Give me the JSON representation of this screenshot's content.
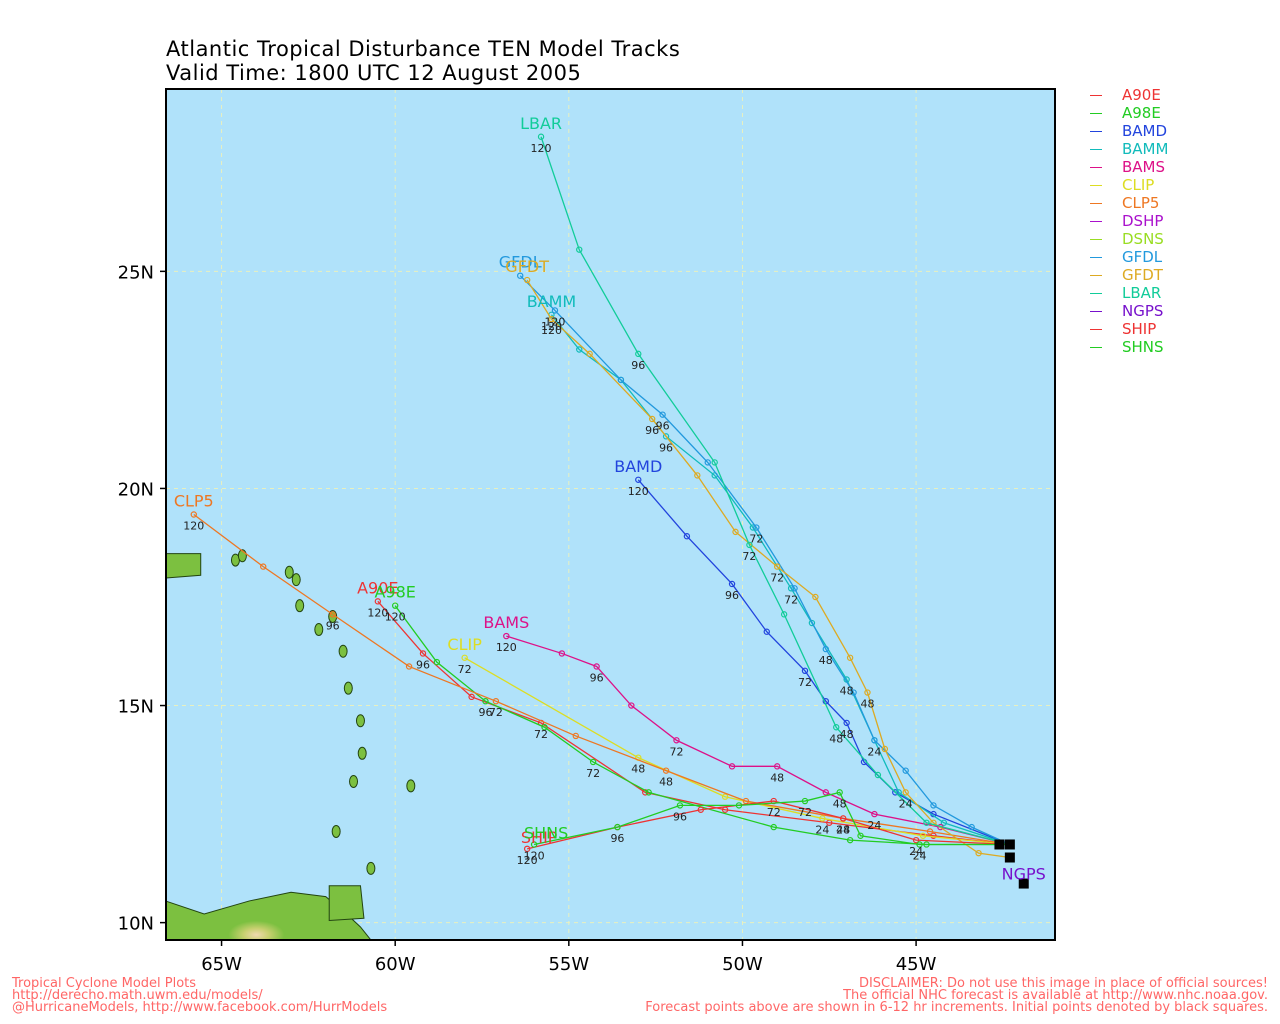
{
  "title": {
    "line1": "Atlantic Tropical Disturbance TEN Model Tracks",
    "line2": "Valid Time: 1800 UTC 12 August 2005"
  },
  "map": {
    "ocean_color": "#b0e2fa",
    "grid_color": "#e8f0c0",
    "lon_range": [
      -66.6,
      -41.0
    ],
    "lat_range": [
      9.6,
      29.2
    ],
    "lon_ticks": [
      {
        "v": -65,
        "label": "65W"
      },
      {
        "v": -60,
        "label": "60W"
      },
      {
        "v": -55,
        "label": "55W"
      },
      {
        "v": -50,
        "label": "50W"
      },
      {
        "v": -45,
        "label": "45W"
      }
    ],
    "lat_ticks": [
      {
        "v": 10,
        "label": "10N"
      },
      {
        "v": 15,
        "label": "15N"
      },
      {
        "v": 20,
        "label": "20N"
      },
      {
        "v": 25,
        "label": "25N"
      }
    ],
    "initial_point": {
      "lon": -42.3,
      "lat": 11.8
    }
  },
  "legend": [
    {
      "name": "A90E",
      "color": "#ee3333"
    },
    {
      "name": "A98E",
      "color": "#22cc22"
    },
    {
      "name": "BAMD",
      "color": "#2244dd"
    },
    {
      "name": "BAMM",
      "color": "#11bbbb"
    },
    {
      "name": "BAMS",
      "color": "#dd1188"
    },
    {
      "name": "CLIP",
      "color": "#dddd22"
    },
    {
      "name": "CLP5",
      "color": "#ee7722"
    },
    {
      "name": "DSHP",
      "color": "#aa11cc"
    },
    {
      "name": "DSNS",
      "color": "#99dd22"
    },
    {
      "name": "GFDL",
      "color": "#2299dd"
    },
    {
      "name": "GFDT",
      "color": "#ddaa22"
    },
    {
      "name": "LBAR",
      "color": "#11cc99"
    },
    {
      "name": "NGPS",
      "color": "#7711cc"
    },
    {
      "name": "SHIP",
      "color": "#ee3333"
    },
    {
      "name": "SHNS",
      "color": "#22cc22"
    }
  ],
  "tracks": [
    {
      "name": "A90E",
      "color": "#ee3333",
      "label_pos": "above",
      "points": [
        [
          -42.3,
          11.8
        ],
        [
          -44.5,
          12.0
        ],
        [
          -47.5,
          12.3
        ],
        [
          -50.5,
          12.6
        ],
        [
          -52.8,
          13.0
        ],
        [
          -55.8,
          14.6
        ],
        [
          -57.8,
          15.2
        ],
        [
          -59.2,
          16.2
        ],
        [
          -60.5,
          17.4
        ]
      ],
      "tau_labels": [
        {
          "i": 5,
          "t": "72"
        },
        {
          "i": 7,
          "t": "96"
        },
        {
          "i": 8,
          "t": "120"
        }
      ]
    },
    {
      "name": "A98E",
      "color": "#22cc22",
      "label_pos": "above",
      "points": [
        [
          -42.3,
          11.8
        ],
        [
          -44.7,
          11.8
        ],
        [
          -46.9,
          11.9
        ],
        [
          -49.1,
          12.2
        ],
        [
          -52.7,
          13.0
        ],
        [
          -54.3,
          13.7
        ],
        [
          -55.7,
          14.5
        ],
        [
          -57.4,
          15.1
        ],
        [
          -58.8,
          16.0
        ],
        [
          -60.0,
          17.3
        ]
      ],
      "tau_labels": [
        {
          "i": 5,
          "t": "72"
        },
        {
          "i": 7,
          "t": "96"
        },
        {
          "i": 9,
          "t": "120"
        }
      ]
    },
    {
      "name": "BAMD",
      "color": "#2244dd",
      "label_pos": "above",
      "points": [
        [
          -42.3,
          11.8
        ],
        [
          -44.5,
          12.5
        ],
        [
          -45.6,
          13.0
        ],
        [
          -46.5,
          13.7
        ],
        [
          -47.0,
          14.6
        ],
        [
          -47.6,
          15.1
        ],
        [
          -48.2,
          15.8
        ],
        [
          -49.3,
          16.7
        ],
        [
          -50.3,
          17.8
        ],
        [
          -51.6,
          18.9
        ],
        [
          -53.0,
          20.2
        ]
      ],
      "tau_labels": [
        {
          "i": 4,
          "t": "48"
        },
        {
          "i": 6,
          "t": "72"
        },
        {
          "i": 8,
          "t": "96"
        },
        {
          "i": 10,
          "t": "120"
        }
      ]
    },
    {
      "name": "BAMM",
      "color": "#11bbbb",
      "label_pos": "above",
      "points": [
        [
          -42.3,
          11.8
        ],
        [
          -44.2,
          12.3
        ],
        [
          -45.5,
          13.0
        ],
        [
          -46.2,
          14.2
        ],
        [
          -47.0,
          15.6
        ],
        [
          -48.0,
          16.9
        ],
        [
          -48.6,
          17.7
        ],
        [
          -49.7,
          19.1
        ],
        [
          -50.8,
          20.3
        ],
        [
          -52.2,
          21.2
        ],
        [
          -53.5,
          22.5
        ],
        [
          -54.7,
          23.2
        ],
        [
          -55.5,
          24.0
        ]
      ],
      "tau_labels": [
        {
          "i": 4,
          "t": "48"
        },
        {
          "i": 6,
          "t": "72"
        },
        {
          "i": 9,
          "t": "96"
        },
        {
          "i": 12,
          "t": "120"
        }
      ]
    },
    {
      "name": "BAMS",
      "color": "#dd1188",
      "label_pos": "above",
      "points": [
        [
          -42.3,
          11.8
        ],
        [
          -44.3,
          12.2
        ],
        [
          -46.2,
          12.5
        ],
        [
          -47.6,
          13.0
        ],
        [
          -49.0,
          13.6
        ],
        [
          -50.3,
          13.6
        ],
        [
          -51.9,
          14.2
        ],
        [
          -53.2,
          15.0
        ],
        [
          -54.2,
          15.9
        ],
        [
          -55.2,
          16.2
        ],
        [
          -56.8,
          16.6
        ]
      ],
      "tau_labels": [
        {
          "i": 2,
          "t": "24"
        },
        {
          "i": 4,
          "t": "48"
        },
        {
          "i": 6,
          "t": "72"
        },
        {
          "i": 8,
          "t": "96"
        },
        {
          "i": 10,
          "t": "120"
        }
      ]
    },
    {
      "name": "CLIP",
      "color": "#dddd22",
      "label_pos": "above",
      "points": [
        [
          -42.3,
          11.8
        ],
        [
          -44.8,
          12.0
        ],
        [
          -47.7,
          12.4
        ],
        [
          -50.5,
          12.9
        ],
        [
          -53.0,
          13.8
        ],
        [
          -58.0,
          16.1
        ]
      ],
      "tau_labels": [
        {
          "i": 2,
          "t": "24"
        },
        {
          "i": 4,
          "t": "48"
        },
        {
          "i": 5,
          "t": "72"
        }
      ]
    },
    {
      "name": "CLP5",
      "color": "#ee7722",
      "label_pos": "above",
      "points": [
        [
          -42.3,
          11.8
        ],
        [
          -44.6,
          12.1
        ],
        [
          -47.1,
          12.4
        ],
        [
          -49.9,
          12.8
        ],
        [
          -52.2,
          13.5
        ],
        [
          -54.8,
          14.3
        ],
        [
          -57.1,
          15.1
        ],
        [
          -59.6,
          15.9
        ],
        [
          -61.8,
          17.1
        ],
        [
          -63.8,
          18.2
        ],
        [
          -65.8,
          19.4
        ]
      ],
      "tau_labels": [
        {
          "i": 2,
          "t": "24"
        },
        {
          "i": 4,
          "t": "48"
        },
        {
          "i": 6,
          "t": "72"
        },
        {
          "i": 8,
          "t": "96"
        },
        {
          "i": 10,
          "t": "120"
        }
      ]
    },
    {
      "name": "GFDL",
      "color": "#2299dd",
      "label_pos": "above",
      "points": [
        [
          -42.3,
          11.8
        ],
        [
          -43.4,
          12.2
        ],
        [
          -44.5,
          12.7
        ],
        [
          -45.3,
          13.5
        ],
        [
          -46.2,
          14.2
        ],
        [
          -46.8,
          15.3
        ],
        [
          -47.6,
          16.3
        ],
        [
          -48.5,
          17.7
        ],
        [
          -49.6,
          19.1
        ],
        [
          -51.0,
          20.6
        ],
        [
          -52.3,
          21.7
        ],
        [
          -53.5,
          22.5
        ],
        [
          -55.4,
          24.1
        ],
        [
          -56.4,
          24.9
        ]
      ],
      "tau_labels": [
        {
          "i": 4,
          "t": "24"
        },
        {
          "i": 6,
          "t": "48"
        },
        {
          "i": 8,
          "t": "72"
        },
        {
          "i": 10,
          "t": "96"
        },
        {
          "i": 12,
          "t": "120"
        }
      ]
    },
    {
      "name": "GFDT",
      "color": "#ddaa22",
      "label_pos": "above",
      "points": [
        [
          -42.3,
          11.5
        ],
        [
          -43.2,
          11.6
        ],
        [
          -44.5,
          12.3
        ],
        [
          -45.3,
          13.0
        ],
        [
          -45.9,
          14.0
        ],
        [
          -46.4,
          15.3
        ],
        [
          -46.9,
          16.1
        ],
        [
          -47.9,
          17.5
        ],
        [
          -49.0,
          18.2
        ],
        [
          -50.2,
          19.0
        ],
        [
          -51.3,
          20.3
        ],
        [
          -52.6,
          21.6
        ],
        [
          -54.4,
          23.1
        ],
        [
          -55.5,
          23.9
        ],
        [
          -56.2,
          24.8
        ]
      ],
      "tau_labels": [
        {
          "i": 3,
          "t": "24"
        },
        {
          "i": 5,
          "t": "48"
        },
        {
          "i": 8,
          "t": "72"
        },
        {
          "i": 11,
          "t": "96"
        },
        {
          "i": 13,
          "t": "120"
        }
      ]
    },
    {
      "name": "LBAR",
      "color": "#11cc99",
      "label_pos": "above",
      "points": [
        [
          -42.3,
          11.8
        ],
        [
          -44.7,
          12.3
        ],
        [
          -46.1,
          13.4
        ],
        [
          -47.3,
          14.5
        ],
        [
          -48.8,
          17.1
        ],
        [
          -49.8,
          18.7
        ],
        [
          -50.8,
          20.6
        ],
        [
          -53.0,
          23.1
        ],
        [
          -54.7,
          25.5
        ],
        [
          -55.8,
          28.1
        ]
      ],
      "tau_labels": [
        {
          "i": 3,
          "t": "48"
        },
        {
          "i": 5,
          "t": "72"
        },
        {
          "i": 7,
          "t": "96"
        },
        {
          "i": 9,
          "t": "120"
        }
      ]
    },
    {
      "name": "NGPS",
      "color": "#7711cc",
      "label_pos": "below",
      "points": [
        [
          -41.9,
          10.9
        ]
      ],
      "tau_labels": []
    },
    {
      "name": "SHIP",
      "color": "#ee3333",
      "label_pos": "left",
      "points": [
        [
          -42.3,
          11.8
        ],
        [
          -45.0,
          11.9
        ],
        [
          -47.1,
          12.4
        ],
        [
          -49.1,
          12.8
        ],
        [
          -51.2,
          12.6
        ],
        [
          -53.6,
          12.2
        ],
        [
          -56.2,
          11.7
        ]
      ],
      "tau_labels": [
        {
          "i": 1,
          "t": "24"
        },
        {
          "i": 2,
          "t": "48"
        },
        {
          "i": 3,
          "t": "72"
        },
        {
          "i": 5,
          "t": "96"
        },
        {
          "i": 6,
          "t": "120"
        }
      ]
    },
    {
      "name": "SHNS",
      "color": "#22cc22",
      "label_pos": "left",
      "points": [
        [
          -42.3,
          11.8
        ],
        [
          -44.9,
          11.8
        ],
        [
          -46.6,
          12.0
        ],
        [
          -47.2,
          13.0
        ],
        [
          -48.2,
          12.8
        ],
        [
          -50.1,
          12.7
        ],
        [
          -51.8,
          12.7
        ],
        [
          -53.6,
          12.2
        ],
        [
          -56.0,
          11.8
        ]
      ],
      "tau_labels": [
        {
          "i": 1,
          "t": "24"
        },
        {
          "i": 3,
          "t": "48"
        },
        {
          "i": 4,
          "t": "72"
        },
        {
          "i": 6,
          "t": "96"
        },
        {
          "i": 8,
          "t": "120"
        }
      ]
    }
  ],
  "footer": {
    "left": [
      "Tropical Cyclone Model Plots",
      "http://derecho.math.uwm.edu/models/",
      "@HurricaneModels, http://www.facebook.com/HurrModels"
    ],
    "right": [
      "DISCLAIMER: Do not use this image in place of official sources!",
      "The official NHC forecast is available at http://www.nhc.noaa.gov.",
      "Forecast points above are shown in 6-12 hr increments. Initial points denoted by black squares."
    ]
  }
}
